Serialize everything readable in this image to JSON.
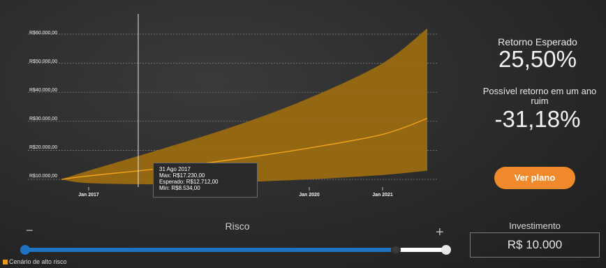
{
  "chart": {
    "y_tick_labels": [
      "R$60.000,00",
      "R$50.000,00",
      "R$40.000,00",
      "R$30.000,00",
      "R$20.000,00",
      "R$10.000,00"
    ],
    "x_tick_labels": [
      "Jan 2017",
      "Jan 2020",
      "Jan 2021"
    ],
    "colors": {
      "band": "#9a6a12",
      "expected_line": "#f2a51c",
      "cursor": "#e8e8e8"
    }
  },
  "chart_data": {
    "type": "area",
    "x": [
      "Ago 2016",
      "Jan 2017",
      "Jan 2018",
      "Jan 2019",
      "Jan 2020",
      "Jan 2021",
      "Ago 2021"
    ],
    "series": [
      {
        "name": "Max",
        "values": [
          10000,
          13000,
          20500,
          28500,
          38000,
          50000,
          62000
        ]
      },
      {
        "name": "Esperado",
        "values": [
          10000,
          11200,
          13800,
          17000,
          20800,
          25500,
          31000
        ]
      },
      {
        "name": "Min",
        "values": [
          10000,
          8700,
          8300,
          9000,
          10000,
          11500,
          13000
        ]
      }
    ],
    "ylim": [
      10000,
      60000
    ],
    "grid": true,
    "legend": "bottom-left"
  },
  "tooltip": {
    "date": "31 Ago 2017",
    "max": "Max: R$17.230,00",
    "expected": "Esperado: R$12.712,00",
    "min": "Min: R$8.534,00"
  },
  "summary": {
    "expected_return_label": "Retorno Esperado",
    "expected_return_value": "25,50%",
    "bad_year_label": "Possível retorno em um ano ruim",
    "bad_year_value": "-31,18%",
    "plan_button": "Ver plano"
  },
  "risk": {
    "label": "Risco",
    "minus": "−",
    "plus": "+",
    "level": 0.88
  },
  "investment": {
    "label": "Investimento",
    "value": "R$ 10.000"
  },
  "legend": {
    "label": "Cenário de alto risco"
  }
}
